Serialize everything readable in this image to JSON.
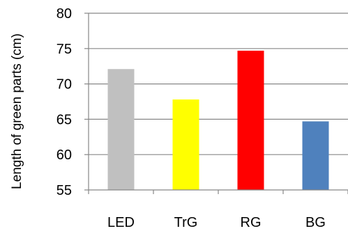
{
  "chart_data": {
    "type": "bar",
    "title": "",
    "xlabel": "",
    "ylabel": "Length of green parts (cm)",
    "categories": [
      "LED",
      "TrG",
      "RG",
      "BG"
    ],
    "values": [
      72.1,
      67.8,
      74.7,
      64.7
    ],
    "colors": [
      "#C0C0C0",
      "#FFFF00",
      "#FF0000",
      "#4F81BD"
    ],
    "ylim": [
      55,
      80
    ],
    "yticks": [
      55,
      60,
      65,
      70,
      75,
      80
    ],
    "grid": true,
    "legend": "none"
  }
}
